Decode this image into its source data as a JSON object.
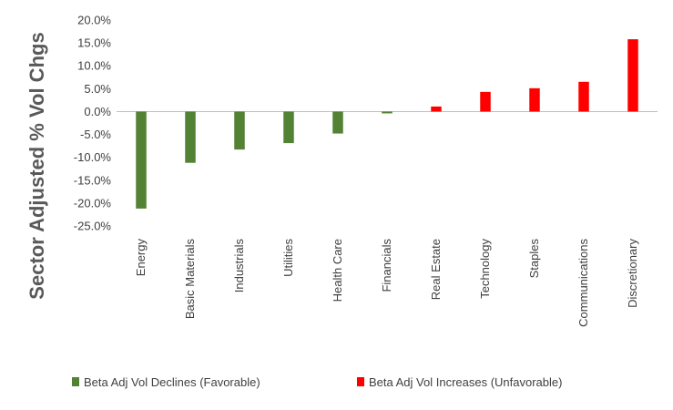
{
  "chart_data": {
    "type": "bar",
    "ylabel": "Sector Adjusted % Vol Chgs",
    "ylim": [
      -25.0,
      20.0
    ],
    "ytick_step": 5.0,
    "ytick_labels": [
      "20.0%",
      "15.0%",
      "10.0%",
      "5.0%",
      "0.0%",
      "-5.0%",
      "-10.0%",
      "-15.0%",
      "-20.0%",
      "-25.0%"
    ],
    "grid": false,
    "categories": [
      "Energy",
      "Basic Materials",
      "Industrials",
      "Utilities",
      "Health Care",
      "Financials",
      "Real Estate",
      "Technology",
      "Staples",
      "Communications",
      "Discretionary"
    ],
    "values": [
      -21.2,
      -11.2,
      -8.3,
      -6.9,
      -4.8,
      -0.4,
      1.1,
      4.3,
      5.1,
      6.5,
      15.8
    ],
    "series": [
      {
        "name": "Beta Adj Vol Declines (Favorable)",
        "color": "#548235",
        "rule": "negative"
      },
      {
        "name": "Beta Adj Vol Increases (Unfavorable)",
        "color": "#ff0000",
        "rule": "positive"
      }
    ],
    "legend_position": "bottom"
  }
}
